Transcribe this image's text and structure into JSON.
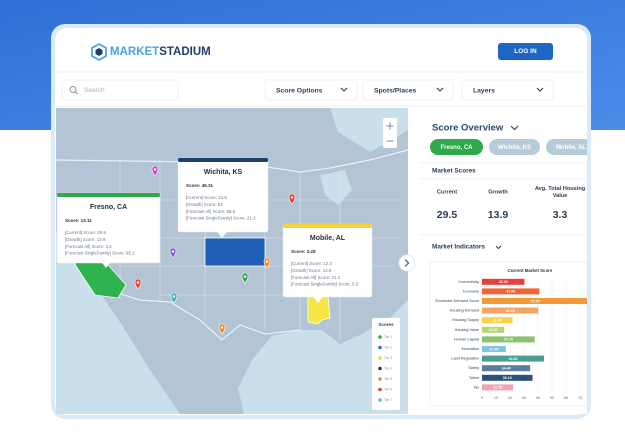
{
  "header": {
    "logo": [
      "MARKET",
      "STADIUM"
    ],
    "login": "LOG IN"
  },
  "toolbar": {
    "search": "Search",
    "dropdowns": [
      "Score Options",
      "Spots/Places",
      "Layers"
    ]
  },
  "map": {
    "popups": [
      {
        "title": "Fresno, CA",
        "score": "Score: 13.11",
        "lines": [
          "[Current] Score: 29.5",
          "[Growth] Score: 13.9",
          "[Forecast All] Score: 3.3",
          "[Forecast SingleFamily] Score: 95.1"
        ]
      },
      {
        "title": "Wichita, KS",
        "score": "Score: 46.31",
        "lines": [
          "[Current] Score: 24.6",
          "[Growth] Score: 53",
          "[Forecast All] Score: 88.5",
          "[Forecast SingleFamily] Score: 21.3"
        ]
      },
      {
        "title": "Mobile, AL",
        "score": "Score: 3.28",
        "lines": [
          "[Current] Score: 12.3",
          "[Growth] Score: 13.9",
          "[Forecast All] Score: 21.3",
          "[Forecast SingleFamily] Score: 5.3"
        ]
      }
    ],
    "legend": {
      "title": "Scores",
      "items": [
        {
          "label": "Tier 1",
          "color": "#2eaa4a"
        },
        {
          "label": "Tier 2",
          "color": "#2f6fd0"
        },
        {
          "label": "Tier 3",
          "color": "#f2d43a"
        },
        {
          "label": "Tier 4",
          "color": "#1f3f6b"
        },
        {
          "label": "Tier 5",
          "color": "#f08a2c"
        },
        {
          "label": "Tier 6",
          "color": "#e8403a"
        },
        {
          "label": "Tier 7",
          "color": "#5bc0de"
        }
      ]
    }
  },
  "panel": {
    "title": "Score Overview",
    "tabs": [
      "Fresno, CA",
      "Wichita, KS",
      "Mobile, AL"
    ],
    "market_scores": {
      "title": "Market Scores",
      "items": [
        {
          "label": "Current",
          "value": 29.5
        },
        {
          "label": "Growth",
          "value": 13.9
        },
        {
          "label": "Avg. Total Housing Value",
          "value": 3.3
        }
      ]
    },
    "indicators_title": "Market Indicators"
  },
  "chart_data": {
    "type": "bar",
    "orientation": "horizontal",
    "title": "Current Market Score",
    "categories": [
      "Connectivity",
      "Economy",
      "Excessive Demand Score",
      "Housing Demand",
      "Housing Supply",
      "Housing Value",
      "Human Capital",
      "Innovation",
      "Land Regulation",
      "Safety",
      "Talent",
      "Tax"
    ],
    "values": [
      30.3,
      41,
      75.7,
      40.25,
      21.8,
      15.8,
      37.7,
      17,
      44.3,
      34.4,
      36.1,
      22.3
    ],
    "value_labels": [
      "30.30",
      "41.00",
      "75.70",
      "40.25",
      "21.80",
      "15.80",
      "37.70",
      "17.00",
      "44.30",
      "34.40",
      "36.10",
      "22.30"
    ],
    "colors": [
      "#e8403a",
      "#f0643a",
      "#f29a3a",
      "#f5a463",
      "#f5d24a",
      "#b8d46a",
      "#8cc26e",
      "#7fc6dc",
      "#4a9e8e",
      "#5b7d9a",
      "#2d4f7c",
      "#f4a3b3"
    ],
    "xlim": [
      0,
      70
    ],
    "xticks": [
      0,
      10,
      20,
      30,
      40,
      50,
      60,
      70
    ]
  }
}
